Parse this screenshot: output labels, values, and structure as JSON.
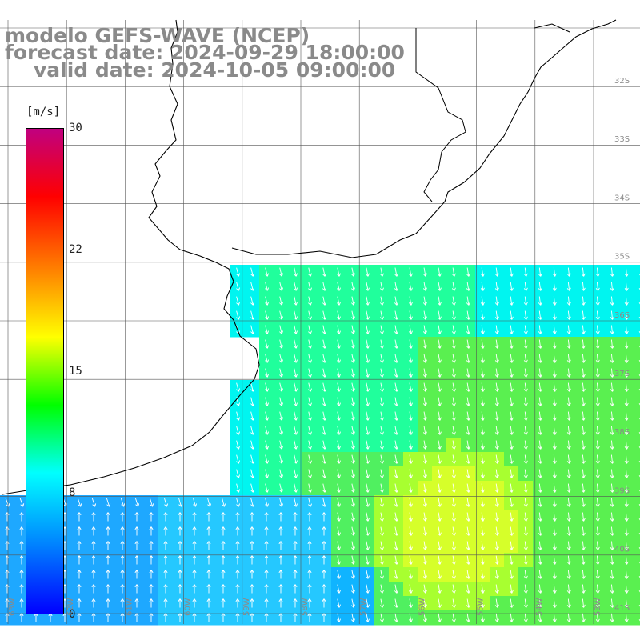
{
  "title": {
    "line1": "modelo GEFS-WAVE (NCEP)",
    "line2": "forecast date: 2024-09-29 18:00:00",
    "line3": "valid date: 2024-10-05 09:00:00"
  },
  "colorbar": {
    "unit": "[m/s]",
    "ticks": [
      "30",
      "22",
      "15",
      "8",
      "0"
    ],
    "tick_values": [
      30,
      22,
      15,
      8,
      0
    ],
    "min": 0,
    "max": 30,
    "colors": [
      "#0000ff",
      "#0080ff",
      "#00ffff",
      "#00ff00",
      "#ffff00",
      "#ff8000",
      "#ff0000",
      "#c00080"
    ]
  },
  "lat_labels": [
    "32S",
    "33S",
    "34S",
    "35S",
    "36S",
    "37S",
    "38S",
    "39S",
    "40S",
    "41S"
  ],
  "lon_labels": [
    "63W",
    "62W",
    "61W",
    "60W",
    "59W",
    "58W",
    "57W",
    "56W",
    "55W",
    "54W",
    "53W",
    "52W"
  ],
  "map_data": {
    "type": "wind-vector-field",
    "variable": "wind speed",
    "unit": "m/s",
    "region": "Río de la Plata / Argentine Sea",
    "wind_direction": "mostly from the northeast/north, turning to northerly-southerly flow in the southwest",
    "speed_range_shown": [
      6,
      15
    ]
  }
}
